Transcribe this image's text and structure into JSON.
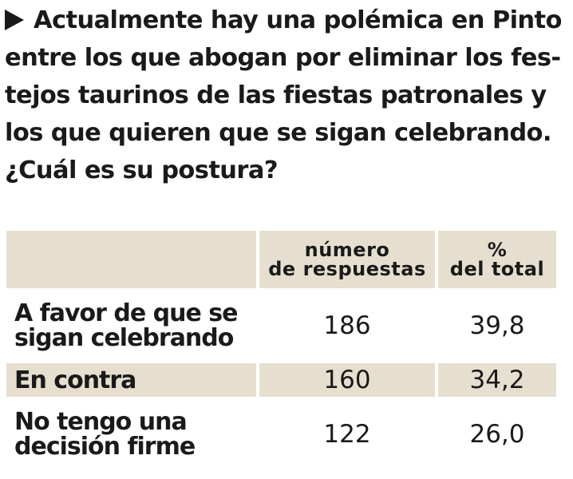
{
  "question": {
    "marker_icon": "right-triangle-arrow",
    "text": "Actualmente hay una polémica en Pinto entre los que abogan por eliminar los fes-tejos taurinos de las fiestas patronales y los que quieren que se sigan celebrando. ¿Cuál es su postura?"
  },
  "table": {
    "header": {
      "col_responses_line1": "número",
      "col_responses_line2": "de respuestas",
      "col_percent_line1": "%",
      "col_percent_line2": "del total"
    },
    "rows": [
      {
        "label_line1": "A favor de que se",
        "label_line2": "sigan celebrando",
        "responses": "186",
        "percent": "39,8"
      },
      {
        "label_line1": "En contra",
        "label_line2": "",
        "responses": "160",
        "percent": "34,2"
      },
      {
        "label_line1": "No tengo una",
        "label_line2": "decisión firme",
        "responses": "122",
        "percent": "26,0"
      }
    ]
  },
  "colors": {
    "row_shade": "#e6dfcf",
    "text": "#1a1a1a"
  }
}
